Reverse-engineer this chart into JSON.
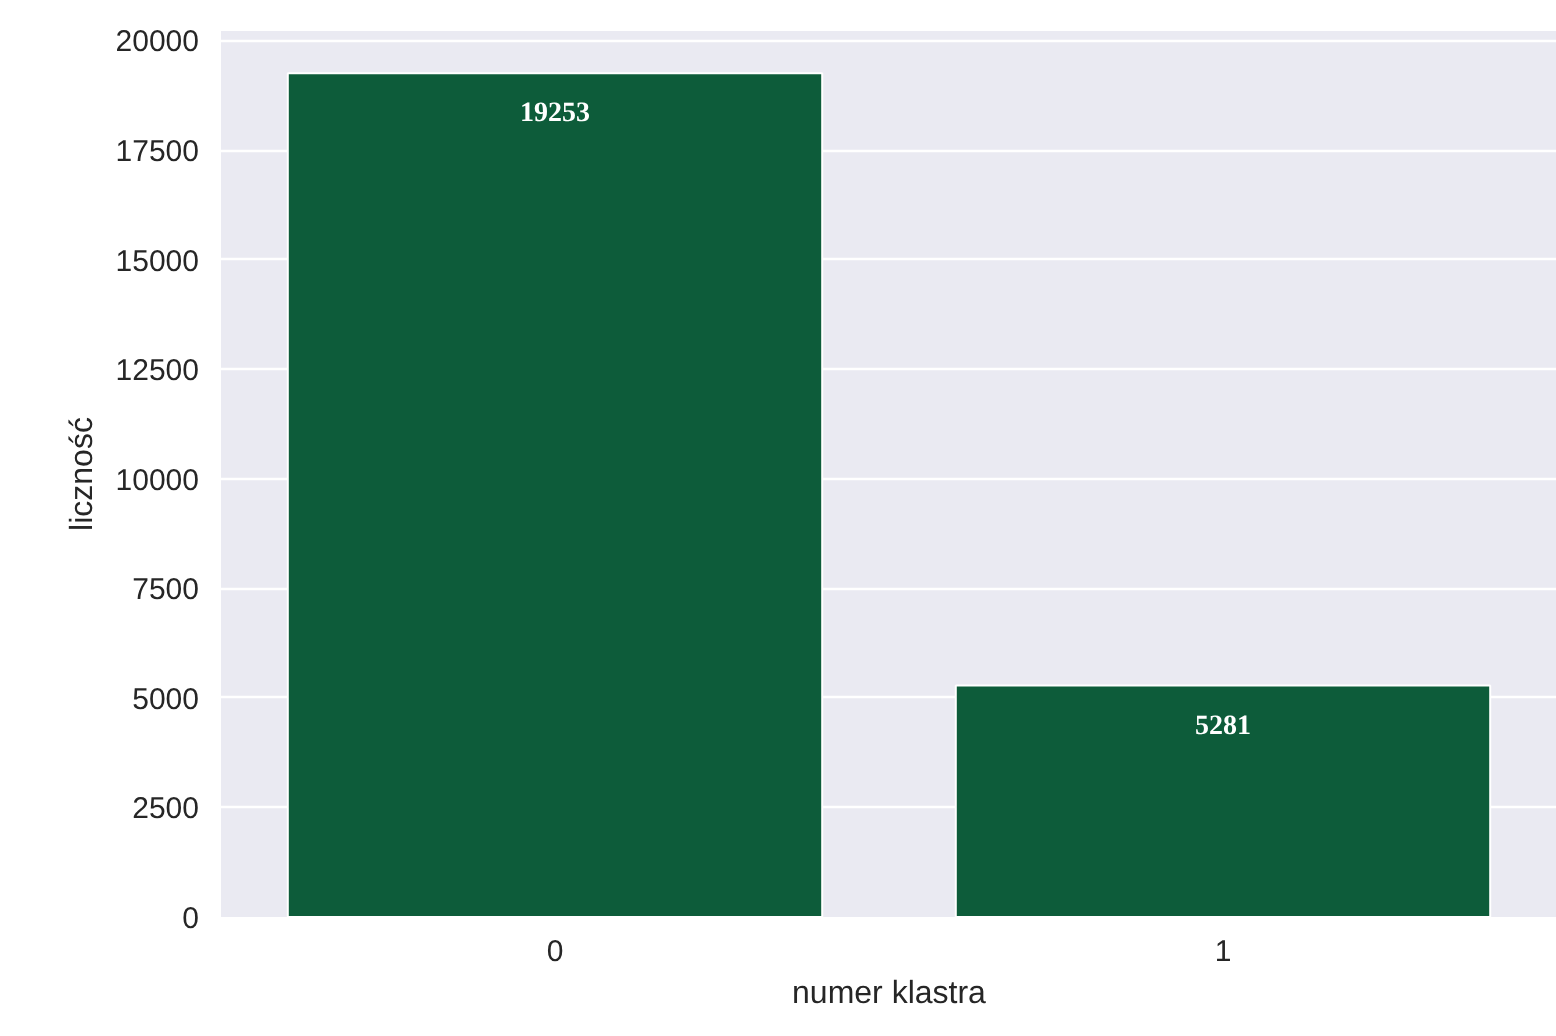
{
  "chart_data": {
    "type": "bar",
    "xlabel": "numer klastra",
    "ylabel": "liczność",
    "categories": [
      "0",
      "1"
    ],
    "values": [
      19253,
      5281
    ],
    "color": "#0d5c3a",
    "ylim": [
      0,
      20216
    ],
    "yticks": [
      0,
      2500,
      5000,
      7500,
      10000,
      12500,
      15000,
      17500,
      20000
    ],
    "grid": "y",
    "data_labels": true
  }
}
